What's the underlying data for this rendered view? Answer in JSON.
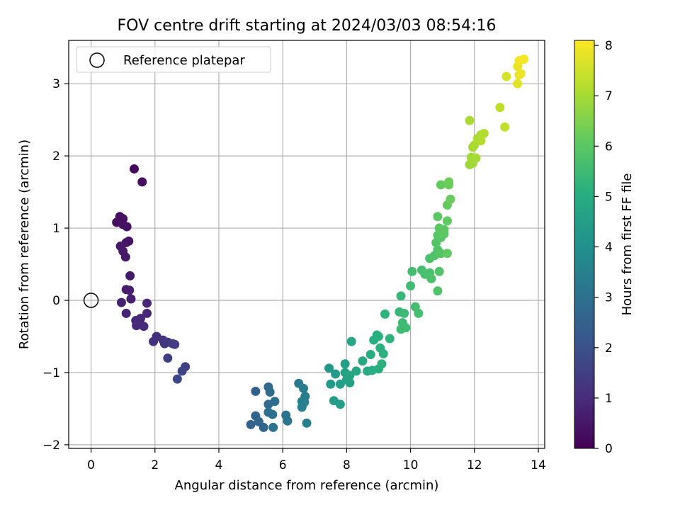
{
  "chart_data": {
    "type": "scatter",
    "title": "FOV centre drift starting at 2024/03/03 08:54:16",
    "xlabel": "Angular distance from reference (arcmin)",
    "ylabel": "Rotation from reference (arcmin)",
    "xlim": [
      -0.7,
      14.2
    ],
    "ylim": [
      -2.05,
      3.6
    ],
    "x_ticks": [
      "0",
      "2",
      "4",
      "6",
      "8",
      "10",
      "12",
      "14"
    ],
    "y_ticks": [
      "−2",
      "−1",
      "0",
      "1",
      "2",
      "3"
    ],
    "grid": true,
    "legend": {
      "placement": "top-left",
      "entries": [
        "Reference platepar"
      ]
    },
    "reference_point": {
      "x": 0,
      "y": 0
    },
    "colorbar": {
      "label": "Hours from first FF file",
      "min": 0,
      "max": 8.1,
      "ticks": [
        "0",
        "1",
        "2",
        "3",
        "4",
        "5",
        "6",
        "7",
        "8"
      ],
      "colormap": "viridis"
    },
    "points": [
      {
        "x": 1.35,
        "y": 1.82,
        "c": 0.2
      },
      {
        "x": 1.6,
        "y": 1.64,
        "c": 0.25
      },
      {
        "x": 0.9,
        "y": 1.16,
        "c": 0.3
      },
      {
        "x": 0.8,
        "y": 1.08,
        "c": 0.3
      },
      {
        "x": 1.0,
        "y": 1.13,
        "c": 0.35
      },
      {
        "x": 1.0,
        "y": 1.05,
        "c": 0.4
      },
      {
        "x": 1.12,
        "y": 1.02,
        "c": 0.4
      },
      {
        "x": 1.1,
        "y": 0.8,
        "c": 0.45
      },
      {
        "x": 1.18,
        "y": 0.82,
        "c": 0.45
      },
      {
        "x": 0.92,
        "y": 0.75,
        "c": 0.5
      },
      {
        "x": 1.0,
        "y": 0.68,
        "c": 0.55
      },
      {
        "x": 1.08,
        "y": 0.6,
        "c": 0.55
      },
      {
        "x": 1.22,
        "y": 0.34,
        "c": 0.6
      },
      {
        "x": 1.1,
        "y": 0.15,
        "c": 0.65
      },
      {
        "x": 1.2,
        "y": 0.14,
        "c": 0.7
      },
      {
        "x": 1.25,
        "y": 0.02,
        "c": 0.7
      },
      {
        "x": 0.95,
        "y": -0.03,
        "c": 0.75
      },
      {
        "x": 1.1,
        "y": -0.18,
        "c": 0.8
      },
      {
        "x": 1.75,
        "y": -0.04,
        "c": 0.85
      },
      {
        "x": 1.75,
        "y": -0.18,
        "c": 0.85
      },
      {
        "x": 1.4,
        "y": -0.28,
        "c": 0.9
      },
      {
        "x": 1.55,
        "y": -0.25,
        "c": 0.9
      },
      {
        "x": 1.42,
        "y": -0.35,
        "c": 0.95
      },
      {
        "x": 1.65,
        "y": -0.36,
        "c": 1.0
      },
      {
        "x": 2.05,
        "y": -0.5,
        "c": 1.1
      },
      {
        "x": 1.95,
        "y": -0.57,
        "c": 1.15
      },
      {
        "x": 2.25,
        "y": -0.55,
        "c": 1.2
      },
      {
        "x": 2.3,
        "y": -0.6,
        "c": 1.25
      },
      {
        "x": 2.4,
        "y": -0.58,
        "c": 1.3
      },
      {
        "x": 2.55,
        "y": -0.6,
        "c": 1.4
      },
      {
        "x": 2.62,
        "y": -0.61,
        "c": 1.45
      },
      {
        "x": 2.4,
        "y": -0.8,
        "c": 1.5
      },
      {
        "x": 2.95,
        "y": -0.92,
        "c": 1.6
      },
      {
        "x": 2.85,
        "y": -0.98,
        "c": 1.65
      },
      {
        "x": 2.7,
        "y": -1.09,
        "c": 1.75
      },
      {
        "x": 5.15,
        "y": -1.26,
        "c": 2.5
      },
      {
        "x": 5.0,
        "y": -1.72,
        "c": 2.55
      },
      {
        "x": 5.15,
        "y": -1.6,
        "c": 2.6
      },
      {
        "x": 5.25,
        "y": -1.68,
        "c": 2.65
      },
      {
        "x": 5.4,
        "y": -1.76,
        "c": 2.7
      },
      {
        "x": 5.55,
        "y": -1.2,
        "c": 2.75
      },
      {
        "x": 5.6,
        "y": -1.27,
        "c": 2.8
      },
      {
        "x": 5.55,
        "y": -1.44,
        "c": 2.85
      },
      {
        "x": 5.75,
        "y": -1.4,
        "c": 2.9
      },
      {
        "x": 5.55,
        "y": -1.55,
        "c": 2.9
      },
      {
        "x": 5.68,
        "y": -1.58,
        "c": 2.95
      },
      {
        "x": 5.7,
        "y": -1.76,
        "c": 3.0
      },
      {
        "x": 6.1,
        "y": -1.59,
        "c": 3.05
      },
      {
        "x": 6.15,
        "y": -1.67,
        "c": 3.1
      },
      {
        "x": 6.5,
        "y": -1.15,
        "c": 3.3
      },
      {
        "x": 6.65,
        "y": -1.22,
        "c": 3.35
      },
      {
        "x": 6.7,
        "y": -1.33,
        "c": 3.4
      },
      {
        "x": 6.6,
        "y": -1.4,
        "c": 3.45
      },
      {
        "x": 6.68,
        "y": -1.41,
        "c": 3.45
      },
      {
        "x": 6.6,
        "y": -1.48,
        "c": 3.5
      },
      {
        "x": 6.75,
        "y": -1.7,
        "c": 3.5
      },
      {
        "x": 7.45,
        "y": -0.94,
        "c": 4.3
      },
      {
        "x": 7.5,
        "y": -1.16,
        "c": 4.35
      },
      {
        "x": 7.65,
        "y": -1.02,
        "c": 4.4
      },
      {
        "x": 7.6,
        "y": -1.39,
        "c": 4.45
      },
      {
        "x": 7.8,
        "y": -1.44,
        "c": 4.5
      },
      {
        "x": 7.8,
        "y": -1.16,
        "c": 4.5
      },
      {
        "x": 7.95,
        "y": -0.88,
        "c": 4.55
      },
      {
        "x": 7.95,
        "y": -1.0,
        "c": 4.6
      },
      {
        "x": 8.0,
        "y": -1.1,
        "c": 4.6
      },
      {
        "x": 8.1,
        "y": -1.14,
        "c": 4.65
      },
      {
        "x": 8.1,
        "y": -1.04,
        "c": 4.7
      },
      {
        "x": 8.15,
        "y": -0.57,
        "c": 4.75
      },
      {
        "x": 8.3,
        "y": -0.98,
        "c": 4.8
      },
      {
        "x": 8.5,
        "y": -0.84,
        "c": 4.85
      },
      {
        "x": 8.65,
        "y": -0.98,
        "c": 4.9
      },
      {
        "x": 8.75,
        "y": -0.75,
        "c": 4.95
      },
      {
        "x": 8.8,
        "y": -0.97,
        "c": 5.0
      },
      {
        "x": 8.85,
        "y": -0.55,
        "c": 5.0
      },
      {
        "x": 8.95,
        "y": -0.48,
        "c": 5.05
      },
      {
        "x": 9.0,
        "y": -0.95,
        "c": 5.05
      },
      {
        "x": 9.0,
        "y": -0.5,
        "c": 5.1
      },
      {
        "x": 9.05,
        "y": -0.66,
        "c": 5.1
      },
      {
        "x": 9.1,
        "y": -0.88,
        "c": 5.15
      },
      {
        "x": 9.15,
        "y": -0.74,
        "c": 5.15
      },
      {
        "x": 9.2,
        "y": -0.19,
        "c": 5.2
      },
      {
        "x": 9.35,
        "y": -0.53,
        "c": 5.2
      },
      {
        "x": 9.7,
        "y": 0.06,
        "c": 5.4
      },
      {
        "x": 9.65,
        "y": -0.16,
        "c": 5.4
      },
      {
        "x": 9.8,
        "y": -0.18,
        "c": 5.45
      },
      {
        "x": 9.75,
        "y": -0.31,
        "c": 5.45
      },
      {
        "x": 9.7,
        "y": -0.4,
        "c": 5.5
      },
      {
        "x": 9.85,
        "y": -0.38,
        "c": 5.5
      },
      {
        "x": 10.0,
        "y": 0.2,
        "c": 5.55
      },
      {
        "x": 10.05,
        "y": 0.4,
        "c": 5.6
      },
      {
        "x": 10.15,
        "y": -0.09,
        "c": 5.6
      },
      {
        "x": 10.25,
        "y": -0.18,
        "c": 5.65
      },
      {
        "x": 10.35,
        "y": 0.42,
        "c": 5.65
      },
      {
        "x": 10.45,
        "y": 0.36,
        "c": 5.7
      },
      {
        "x": 10.6,
        "y": 0.38,
        "c": 5.7
      },
      {
        "x": 10.65,
        "y": 0.3,
        "c": 5.75
      },
      {
        "x": 10.6,
        "y": 0.58,
        "c": 5.75
      },
      {
        "x": 10.75,
        "y": 0.62,
        "c": 5.8
      },
      {
        "x": 10.85,
        "y": 0.13,
        "c": 5.8
      },
      {
        "x": 10.9,
        "y": 0.4,
        "c": 5.85
      },
      {
        "x": 10.85,
        "y": 0.7,
        "c": 5.85
      },
      {
        "x": 10.95,
        "y": 0.65,
        "c": 5.9
      },
      {
        "x": 10.8,
        "y": 0.8,
        "c": 5.9
      },
      {
        "x": 10.85,
        "y": 0.9,
        "c": 5.95
      },
      {
        "x": 10.95,
        "y": 0.87,
        "c": 5.95
      },
      {
        "x": 10.9,
        "y": 1.0,
        "c": 6.0
      },
      {
        "x": 11.05,
        "y": 0.98,
        "c": 6.0
      },
      {
        "x": 10.85,
        "y": 1.16,
        "c": 6.05
      },
      {
        "x": 11.05,
        "y": 0.92,
        "c": 6.05
      },
      {
        "x": 11.15,
        "y": 0.65,
        "c": 6.1
      },
      {
        "x": 11.15,
        "y": 1.1,
        "c": 6.1
      },
      {
        "x": 10.95,
        "y": 1.6,
        "c": 6.15
      },
      {
        "x": 11.15,
        "y": 1.32,
        "c": 6.15
      },
      {
        "x": 11.25,
        "y": 1.4,
        "c": 6.2
      },
      {
        "x": 11.2,
        "y": 1.6,
        "c": 6.2
      },
      {
        "x": 11.2,
        "y": 1.64,
        "c": 6.25
      },
      {
        "x": 11.85,
        "y": 1.88,
        "c": 6.9
      },
      {
        "x": 11.9,
        "y": 1.98,
        "c": 6.95
      },
      {
        "x": 11.95,
        "y": 1.9,
        "c": 6.95
      },
      {
        "x": 12.05,
        "y": 1.97,
        "c": 7.0
      },
      {
        "x": 11.95,
        "y": 2.12,
        "c": 7.0
      },
      {
        "x": 12.0,
        "y": 2.15,
        "c": 7.05
      },
      {
        "x": 11.85,
        "y": 2.49,
        "c": 7.05
      },
      {
        "x": 12.1,
        "y": 2.24,
        "c": 7.1
      },
      {
        "x": 12.2,
        "y": 2.29,
        "c": 7.1
      },
      {
        "x": 12.3,
        "y": 2.31,
        "c": 7.15
      },
      {
        "x": 12.2,
        "y": 2.21,
        "c": 7.15
      },
      {
        "x": 12.8,
        "y": 2.67,
        "c": 7.3
      },
      {
        "x": 12.95,
        "y": 2.4,
        "c": 7.35
      },
      {
        "x": 13.0,
        "y": 3.1,
        "c": 7.6
      },
      {
        "x": 13.35,
        "y": 3.0,
        "c": 7.75
      },
      {
        "x": 13.4,
        "y": 3.12,
        "c": 7.8
      },
      {
        "x": 13.35,
        "y": 3.24,
        "c": 7.85
      },
      {
        "x": 13.45,
        "y": 3.14,
        "c": 7.9
      },
      {
        "x": 13.4,
        "y": 3.32,
        "c": 7.95
      },
      {
        "x": 13.55,
        "y": 3.34,
        "c": 8.0
      }
    ]
  }
}
